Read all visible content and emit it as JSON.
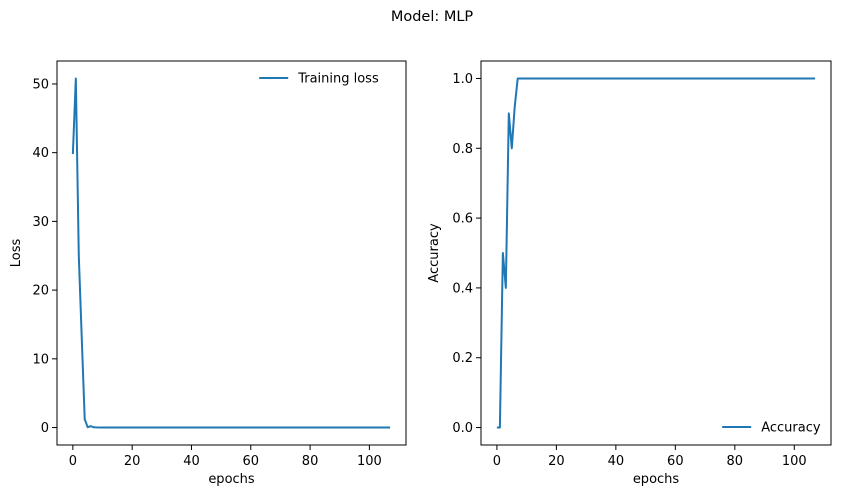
{
  "figure": {
    "suptitle": "Model: MLP"
  },
  "chart_data": [
    {
      "type": "line",
      "title": "",
      "xlabel": "epochs",
      "ylabel": "Loss",
      "xlim": [
        -5.35,
        112.35
      ],
      "ylim": [
        -2.54,
        53.34
      ],
      "xticks": [
        0,
        20,
        40,
        60,
        80,
        100
      ],
      "yticks": [
        0,
        10,
        20,
        30,
        40,
        50
      ],
      "grid": false,
      "legend_position": "upper right",
      "color": "#1f77b4",
      "series": [
        {
          "name": "Training loss",
          "x": [
            0,
            1,
            2,
            3,
            4,
            5,
            6,
            7,
            8,
            9,
            10,
            15,
            20,
            30,
            40,
            50,
            60,
            70,
            80,
            90,
            100,
            107
          ],
          "y": [
            39.8,
            50.8,
            25.0,
            13.0,
            1.2,
            0.05,
            0.2,
            0.05,
            0.02,
            0.01,
            0.01,
            0.0,
            0.0,
            0.0,
            0.0,
            0.0,
            0.0,
            0.0,
            0.0,
            0.0,
            0.0,
            0.0
          ]
        }
      ]
    },
    {
      "type": "line",
      "title": "",
      "xlabel": "epochs",
      "ylabel": "Accuracy",
      "xlim": [
        -5.35,
        112.35
      ],
      "ylim": [
        -0.05,
        1.05
      ],
      "xticks": [
        0,
        20,
        40,
        60,
        80,
        100
      ],
      "yticks": [
        0.0,
        0.2,
        0.4,
        0.6,
        0.8,
        1.0
      ],
      "ytick_labels": [
        "0.0",
        "0.2",
        "0.4",
        "0.6",
        "0.8",
        "1.0"
      ],
      "grid": false,
      "legend_position": "lower right",
      "color": "#1f77b4",
      "series": [
        {
          "name": "Accuracy",
          "x": [
            0,
            1,
            2,
            3,
            4,
            5,
            6,
            7,
            8,
            20,
            40,
            60,
            80,
            100,
            107
          ],
          "y": [
            0.0,
            0.0,
            0.5,
            0.4,
            0.9,
            0.8,
            0.92,
            1.0,
            1.0,
            1.0,
            1.0,
            1.0,
            1.0,
            1.0,
            1.0
          ]
        }
      ]
    }
  ]
}
